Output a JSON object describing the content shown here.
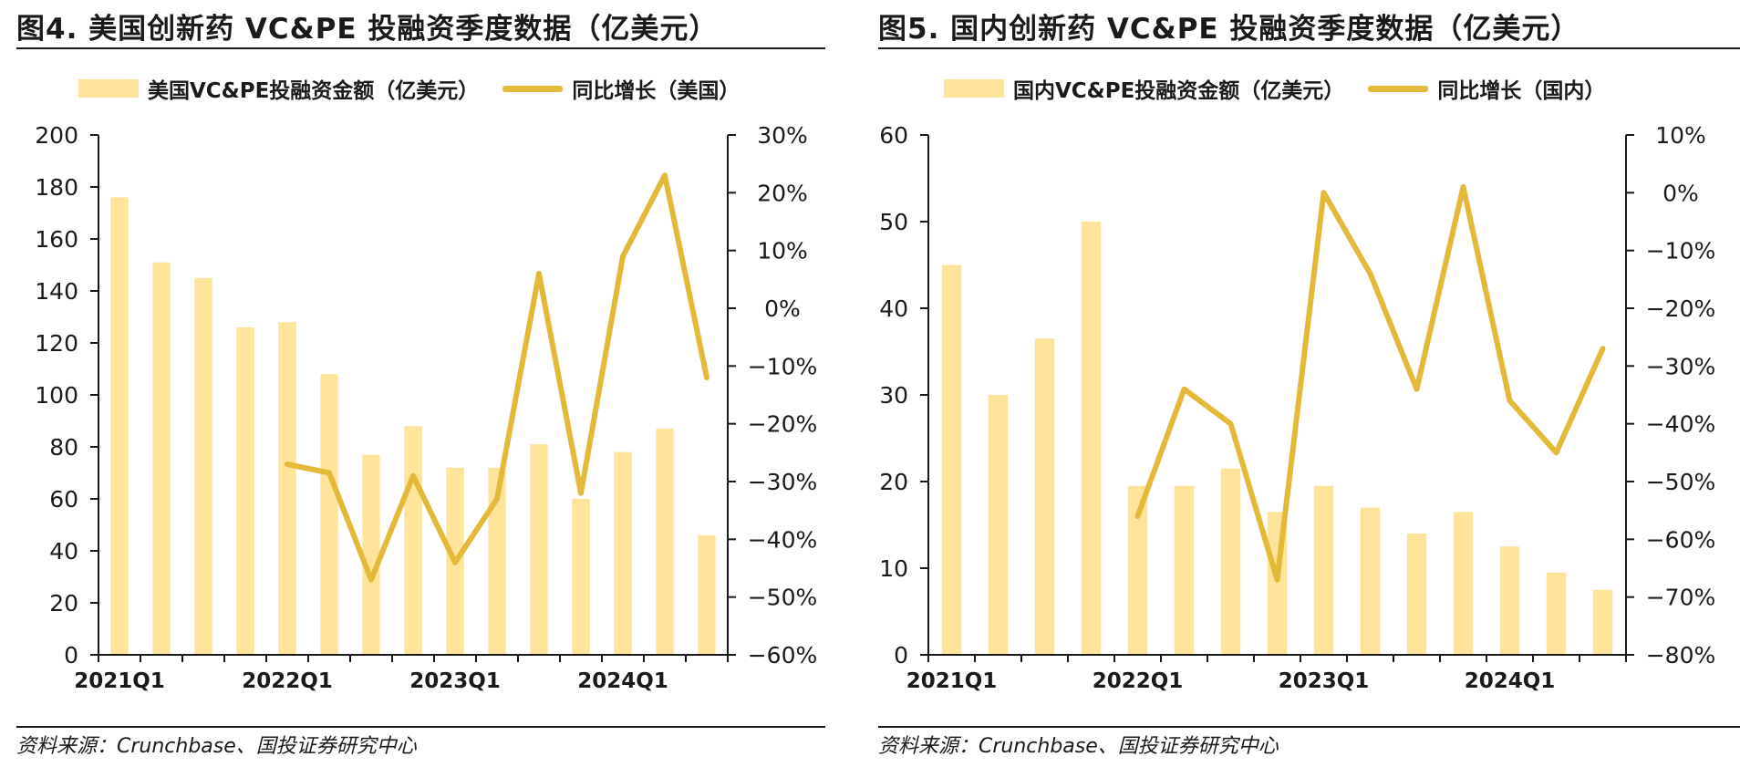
{
  "chart_data": [
    {
      "type": "bar",
      "title": "图4. 美国创新药 VC&PE 投融资季度数据（亿美元）",
      "source": "资料来源：Crunchbase、国投证券研究中心",
      "categories": [
        "2021Q1",
        "2021Q2",
        "2021Q3",
        "2021Q4",
        "2022Q1",
        "2022Q2",
        "2022Q3",
        "2022Q4",
        "2023Q1",
        "2023Q2",
        "2023Q3",
        "2023Q4",
        "2024Q1",
        "2024Q2",
        "2024Q3"
      ],
      "x_tick_labels": [
        "2021Q1",
        "",
        "",
        "",
        "2022Q1",
        "",
        "",
        "",
        "2023Q1",
        "",
        "",
        "",
        "2024Q1",
        "",
        ""
      ],
      "series": [
        {
          "name": "美国VC&PE投融资金额（亿美元）",
          "type": "bar",
          "axis": "left",
          "values": [
            176,
            151,
            145,
            126,
            128,
            108,
            77,
            88,
            72,
            72,
            81,
            60,
            78,
            87,
            46
          ]
        },
        {
          "name": "同比增长（美国）",
          "type": "line",
          "axis": "right",
          "values": [
            null,
            null,
            null,
            null,
            -27,
            -28.5,
            -47,
            -29,
            -44,
            -33,
            6,
            -32,
            9,
            23,
            -12
          ]
        }
      ],
      "ylim_left": [
        0,
        200
      ],
      "yticks_left": [
        "0",
        "20",
        "40",
        "60",
        "80",
        "100",
        "120",
        "140",
        "160",
        "180",
        "200"
      ],
      "ylim_right": [
        -60,
        30
      ],
      "yticks_right": [
        "-60%",
        "-50%",
        "-40%",
        "-30%",
        "-20%",
        "-10%",
        "0%",
        "10%",
        "20%",
        "30%"
      ],
      "legend_position": "top",
      "grid": false,
      "colors": {
        "bar": "#fde49a",
        "line": "#e3b93a"
      }
    },
    {
      "type": "bar",
      "title": "图5. 国内创新药 VC&PE 投融资季度数据（亿美元）",
      "source": "资料来源：Crunchbase、国投证券研究中心",
      "categories": [
        "2021Q1",
        "2021Q2",
        "2021Q3",
        "2021Q4",
        "2022Q1",
        "2022Q2",
        "2022Q3",
        "2022Q4",
        "2023Q1",
        "2023Q2",
        "2023Q3",
        "2023Q4",
        "2024Q1",
        "2024Q2",
        "2024Q3"
      ],
      "x_tick_labels": [
        "2021Q1",
        "",
        "",
        "",
        "2022Q1",
        "",
        "",
        "",
        "2023Q1",
        "",
        "",
        "",
        "2024Q1",
        "",
        ""
      ],
      "series": [
        {
          "name": "国内VC&PE投融资金额（亿美元）",
          "type": "bar",
          "axis": "left",
          "values": [
            45,
            30,
            36.5,
            50,
            19.5,
            19.5,
            21.5,
            16.5,
            19.5,
            17,
            14,
            16.5,
            12.5,
            9.5,
            7.5
          ]
        },
        {
          "name": "同比增长（国内）",
          "type": "line",
          "axis": "right",
          "values": [
            null,
            null,
            null,
            null,
            -56,
            -34,
            -40,
            -67,
            0,
            -14,
            -34,
            1,
            -36,
            -45,
            -27
          ]
        }
      ],
      "ylim_left": [
        0,
        60
      ],
      "yticks_left": [
        "0",
        "10",
        "20",
        "30",
        "40",
        "50",
        "60"
      ],
      "ylim_right": [
        -80,
        10
      ],
      "yticks_right": [
        "-80%",
        "-70%",
        "-60%",
        "-50%",
        "-40%",
        "-30%",
        "-20%",
        "-10%",
        "0%",
        "10%"
      ],
      "legend_position": "top",
      "grid": false,
      "colors": {
        "bar": "#fde49a",
        "line": "#e3b93a"
      }
    }
  ]
}
